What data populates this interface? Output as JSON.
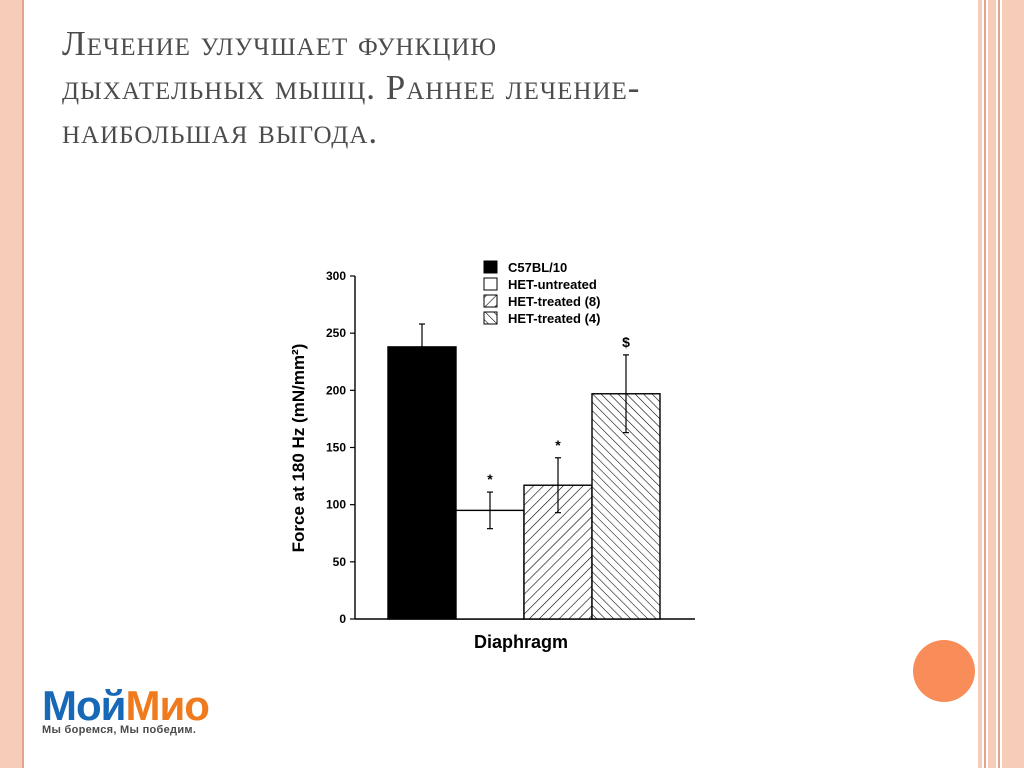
{
  "slide": {
    "title_line1": "Лечение улучшает функцию",
    "title_line2": "дыхательных  мышц. Раннее лечение-",
    "title_line3": "наибольшая выгода."
  },
  "logo": {
    "word_part1": "Мой",
    "word_part2": "Мио",
    "tagline": "Мы боремся, Мы победим."
  },
  "colors": {
    "accent_stripe": "#f6cdb8",
    "accent_circle": "#f98d5a",
    "logo_blue": "#1769b7",
    "logo_orange": "#f07b1e"
  },
  "chart_data": {
    "type": "bar",
    "xlabel": "Diaphragm",
    "ylabel": "Force at 180 Hz (mN/mm²)",
    "ylim": [
      0,
      300
    ],
    "yticks": [
      0,
      50,
      100,
      150,
      200,
      250,
      300
    ],
    "legend_position": "top-right",
    "series": [
      {
        "name": "C57BL/10",
        "value": 238,
        "error": 20,
        "fill": "solid-black",
        "marker": ""
      },
      {
        "name": "HET-untreated",
        "value": 95,
        "error": 16,
        "fill": "white",
        "marker": "*"
      },
      {
        "name": "HET-treated (8)",
        "value": 117,
        "error": 24,
        "fill": "hatch-forward",
        "marker": "*"
      },
      {
        "name": "HET-treated (4)",
        "value": 197,
        "error": 34,
        "fill": "hatch-back",
        "marker": "$"
      }
    ]
  }
}
